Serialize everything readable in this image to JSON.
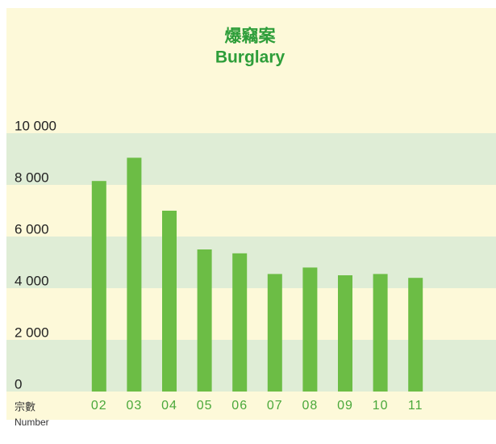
{
  "chart_data": {
    "type": "bar",
    "title": "爆竊案",
    "subtitle": "Burglary",
    "y_label": "宗數",
    "y_label_en": "Number",
    "categories": [
      "02",
      "03",
      "04",
      "05",
      "06",
      "07",
      "08",
      "09",
      "10",
      "11"
    ],
    "values": [
      8150,
      9050,
      7000,
      5500,
      5350,
      4550,
      4800,
      4500,
      4550,
      4400
    ],
    "color": "#6cbd45",
    "band_color": "#dfedd6",
    "background": "#fdf9d9",
    "ylim": [
      0,
      10000
    ],
    "yticks": [
      0,
      {
        "value": 2000,
        "label": "2 000"
      },
      {
        "value": 4000,
        "label": "4 000"
      },
      {
        "value": 6000,
        "label": "6 000"
      },
      {
        "value": 8000,
        "label": "8 000"
      },
      {
        "value": 10000,
        "label": "10 000"
      }
    ],
    "grid": true
  }
}
